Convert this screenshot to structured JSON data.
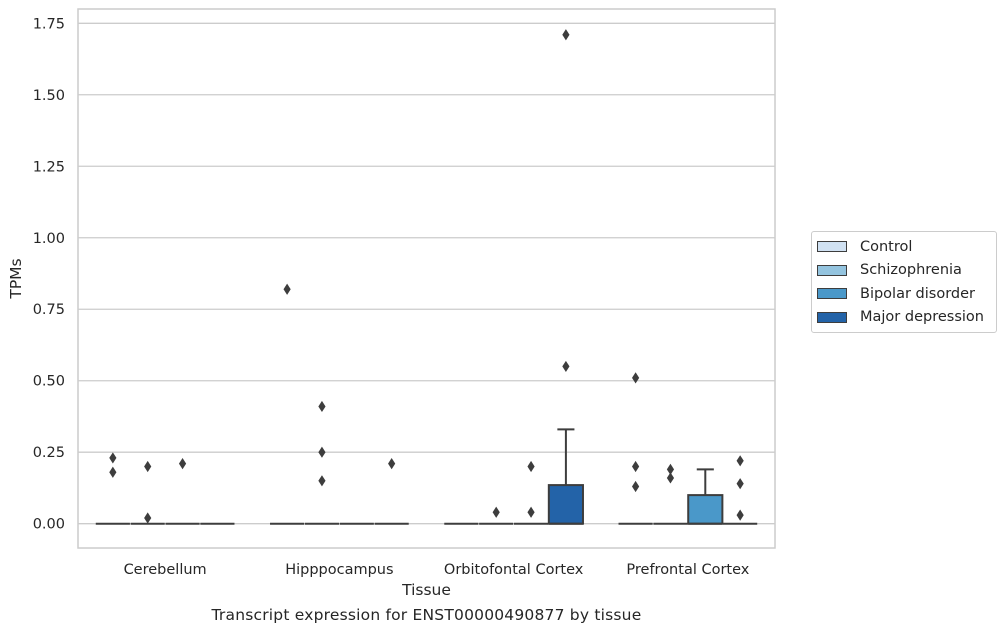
{
  "chart_data": {
    "type": "box",
    "xlabel": "Tissue",
    "ylabel": "TPMs",
    "ylim": [
      -0.085,
      1.8
    ],
    "yticks": [
      0.0,
      0.25,
      0.5,
      0.75,
      1.0,
      1.25,
      1.5,
      1.75
    ],
    "ytick_labels": [
      "0.00",
      "0.25",
      "0.50",
      "0.75",
      "1.00",
      "1.25",
      "1.50",
      "1.75"
    ],
    "categories": [
      "Cerebellum",
      "Hipppocampus",
      "Orbitofontal Cortex",
      "Prefrontal Cortex"
    ],
    "grid": "horizontal",
    "legend_position": "right",
    "series": [
      {
        "name": "Control",
        "color": "#d0e1f2",
        "boxes": [
          {
            "q1": 0,
            "median": 0,
            "q3": 0,
            "whisker_low": 0,
            "whisker_high": 0,
            "outliers": [
              0.23,
              0.18
            ]
          },
          {
            "q1": 0,
            "median": 0,
            "q3": 0,
            "whisker_low": 0,
            "whisker_high": 0,
            "outliers": [
              0.82
            ]
          },
          {
            "q1": 0,
            "median": 0,
            "q3": 0,
            "whisker_low": 0,
            "whisker_high": 0,
            "outliers": []
          },
          {
            "q1": 0,
            "median": 0,
            "q3": 0,
            "whisker_low": 0,
            "whisker_high": 0,
            "outliers": [
              0.51,
              0.2,
              0.13
            ]
          }
        ]
      },
      {
        "name": "Schizophrenia",
        "color": "#94c4df",
        "boxes": [
          {
            "q1": 0,
            "median": 0,
            "q3": 0,
            "whisker_low": 0,
            "whisker_high": 0,
            "outliers": [
              0.2,
              0.02
            ]
          },
          {
            "q1": 0,
            "median": 0,
            "q3": 0,
            "whisker_low": 0,
            "whisker_high": 0,
            "outliers": [
              0.41,
              0.25,
              0.15
            ]
          },
          {
            "q1": 0,
            "median": 0,
            "q3": 0,
            "whisker_low": 0,
            "whisker_high": 0,
            "outliers": [
              0.04
            ]
          },
          {
            "q1": 0,
            "median": 0,
            "q3": 0,
            "whisker_low": 0,
            "whisker_high": 0,
            "outliers": [
              0.19,
              0.16
            ]
          }
        ]
      },
      {
        "name": "Bipolar disorder",
        "color": "#4a98c9",
        "boxes": [
          {
            "q1": 0,
            "median": 0,
            "q3": 0,
            "whisker_low": 0,
            "whisker_high": 0,
            "outliers": [
              0.21
            ]
          },
          {
            "q1": 0,
            "median": 0,
            "q3": 0,
            "whisker_low": 0,
            "whisker_high": 0,
            "outliers": []
          },
          {
            "q1": 0,
            "median": 0,
            "q3": 0,
            "whisker_low": 0,
            "whisker_high": 0,
            "outliers": [
              0.2,
              0.04
            ]
          },
          {
            "q1": 0,
            "median": 0,
            "q3": 0.1,
            "whisker_low": 0,
            "whisker_high": 0.19,
            "outliers": []
          }
        ]
      },
      {
        "name": "Major depression",
        "color": "#2363a8",
        "boxes": [
          {
            "q1": 0,
            "median": 0,
            "q3": 0,
            "whisker_low": 0,
            "whisker_high": 0,
            "outliers": []
          },
          {
            "q1": 0,
            "median": 0,
            "q3": 0,
            "whisker_low": 0,
            "whisker_high": 0,
            "outliers": [
              0.21
            ]
          },
          {
            "q1": 0,
            "median": 0,
            "q3": 0.135,
            "whisker_low": 0,
            "whisker_high": 0.33,
            "outliers": [
              1.71,
              0.55
            ]
          },
          {
            "q1": 0,
            "median": 0,
            "q3": 0,
            "whisker_low": 0,
            "whisker_high": 0,
            "outliers": [
              0.22,
              0.14,
              0.03
            ]
          }
        ]
      }
    ]
  },
  "caption": "Transcript expression for ENST00000490877 by tissue"
}
